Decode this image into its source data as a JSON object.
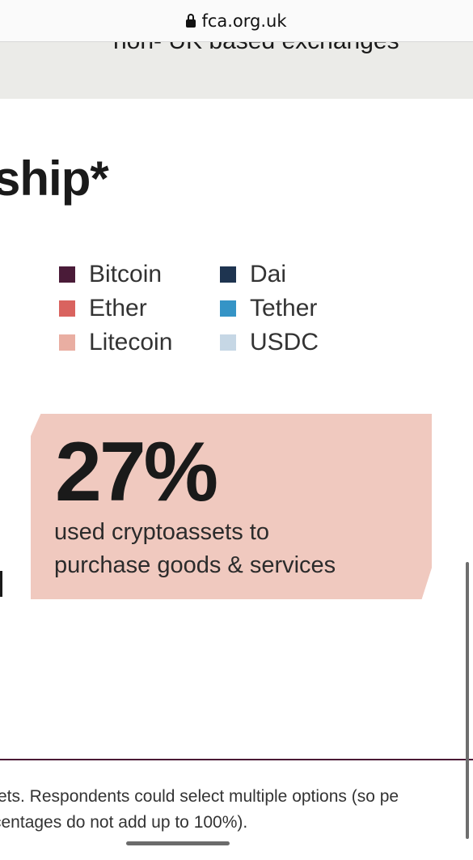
{
  "browser": {
    "url": "fca.org.uk"
  },
  "banner": {
    "clipped_text": "non- UK based exchanges"
  },
  "section": {
    "heading": "ship*"
  },
  "legend": {
    "left": [
      {
        "label": "Bitcoin",
        "color": "#4a1b38"
      },
      {
        "label": "Ether",
        "color": "#d9635f"
      },
      {
        "label": "Litecoin",
        "color": "#e9aea2"
      }
    ],
    "right": [
      {
        "label": "Dai",
        "color": "#1e3450"
      },
      {
        "label": "Tether",
        "color": "#3594c6"
      },
      {
        "label": "USDC",
        "color": "#c6d7e5"
      }
    ]
  },
  "stat": {
    "value": "27%",
    "line1": "used cryptoassets to",
    "line2": "purchase goods & services",
    "background": "#f0c9bf"
  },
  "footnote": {
    "line1": "ets. Respondents could select multiple options (so pe",
    "line2": "centages do not add up to 100%)."
  }
}
